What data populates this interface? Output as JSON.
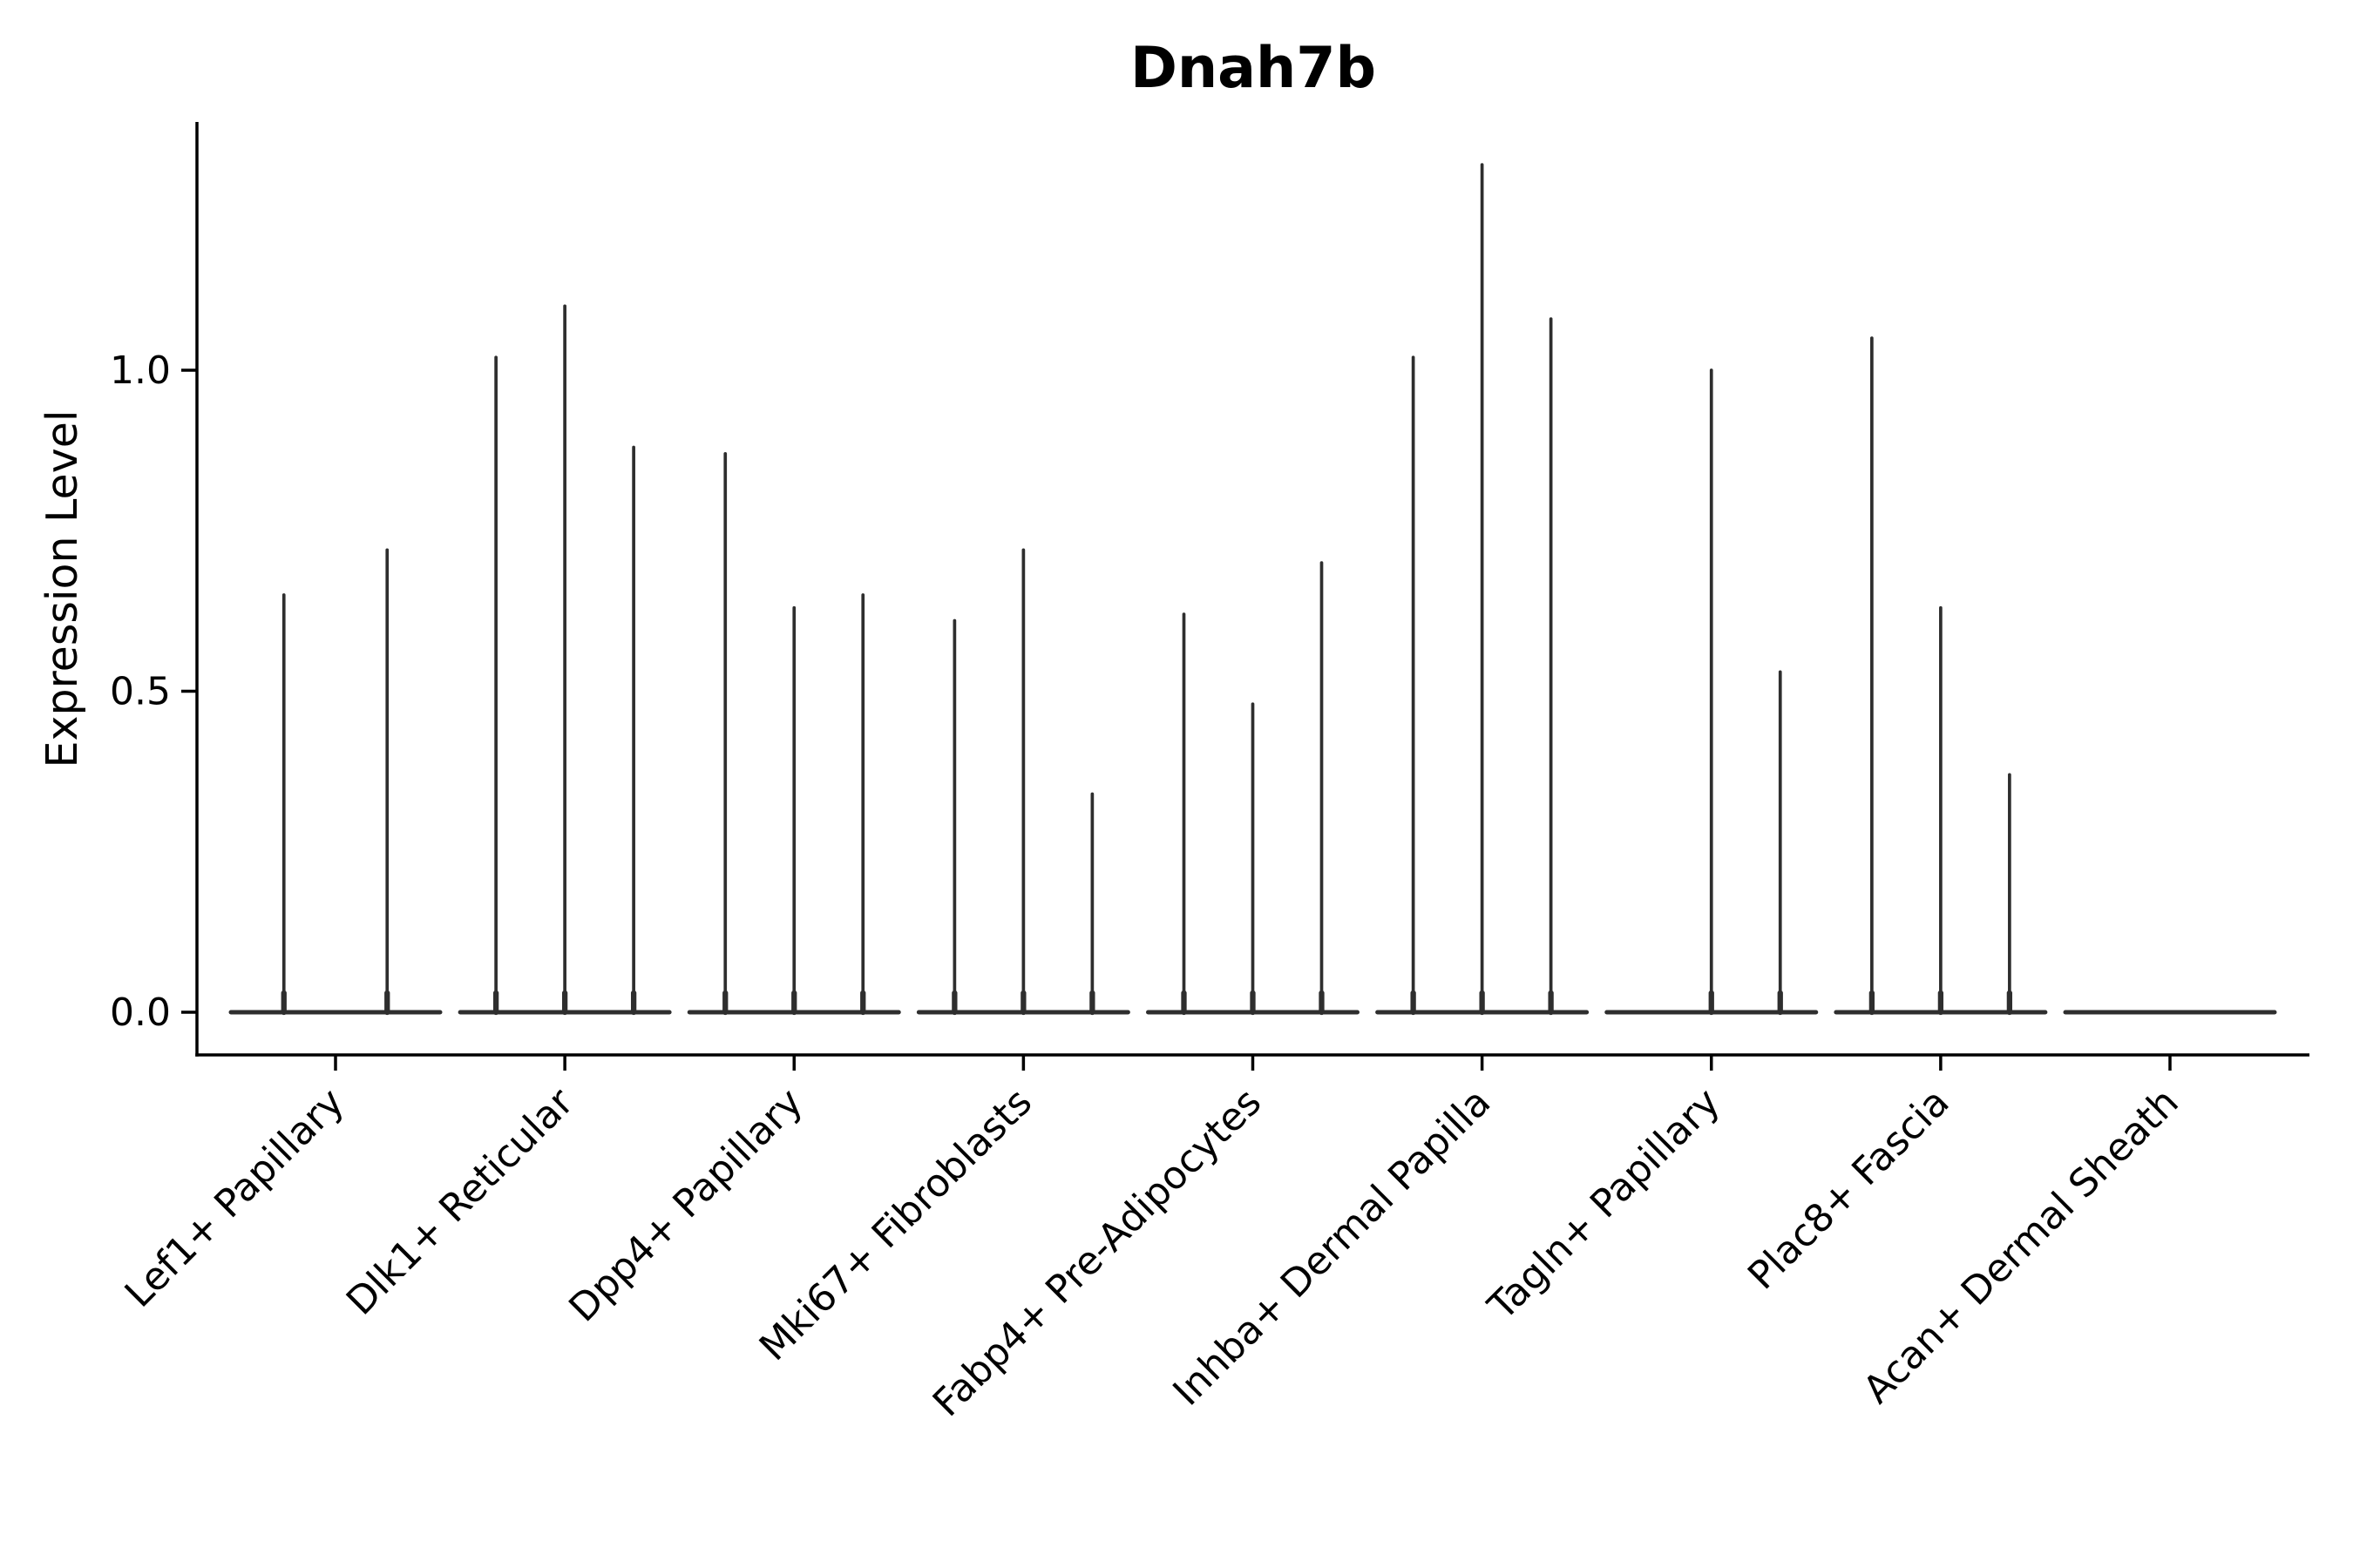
{
  "title": "Dnah7b",
  "ylabel": "Expression Level",
  "colors": {
    "ink": "#000000",
    "violin": "#2e2e2e",
    "background": "#ffffff"
  },
  "chart_data": {
    "type": "violin",
    "title": "Dnah7b",
    "xlabel": "",
    "ylabel": "Expression Level",
    "ylim": [
      -0.067,
      1.387
    ],
    "grid": false,
    "legend": "none",
    "x_tick_rotation_deg": 45,
    "yticks": [
      {
        "label": "0.0",
        "value": 0.0
      },
      {
        "label": "0.5",
        "value": 0.5
      },
      {
        "label": "1.0",
        "value": 1.0
      }
    ],
    "categories": [
      "Lef1+ Papillary",
      "Dlk1+ Reticular",
      "Dpp4+ Papillary",
      "Mki67+ Fibroblasts",
      "Fabp4+ Pre-Adipocytes",
      "Inhba+ Dermal Papilla",
      "Tagln+ Papillary",
      "Plac8+ Fascia",
      "Acan+ Dermal Sheath"
    ],
    "description": "Each category shows narrow collapsed violins: a flat density blob at 0 with a thin spike up to the max expression value. A max of 0 means the violin is a flat line with no spike.",
    "series": [
      {
        "category": "Lef1+ Papillary",
        "violin_max": [
          0.65,
          0.72
        ]
      },
      {
        "category": "Dlk1+ Reticular",
        "violin_max": [
          1.02,
          1.1,
          0.88
        ]
      },
      {
        "category": "Dpp4+ Papillary",
        "violin_max": [
          0.87,
          0.63,
          0.65
        ]
      },
      {
        "category": "Mki67+ Fibroblasts",
        "violin_max": [
          0.61,
          0.72,
          0.34
        ]
      },
      {
        "category": "Fabp4+ Pre-Adipocytes",
        "violin_max": [
          0.62,
          0.48,
          0.7
        ]
      },
      {
        "category": "Inhba+ Dermal Papilla",
        "violin_max": [
          1.02,
          1.32,
          1.08
        ]
      },
      {
        "category": "Tagln+ Papillary",
        "violin_max": [
          0.0,
          1.0,
          0.53
        ]
      },
      {
        "category": "Plac8+ Fascia",
        "violin_max": [
          1.05,
          0.63,
          0.37
        ]
      },
      {
        "category": "Acan+ Dermal Sheath",
        "violin_max": [
          0.0,
          0.0,
          0.0
        ]
      }
    ]
  }
}
